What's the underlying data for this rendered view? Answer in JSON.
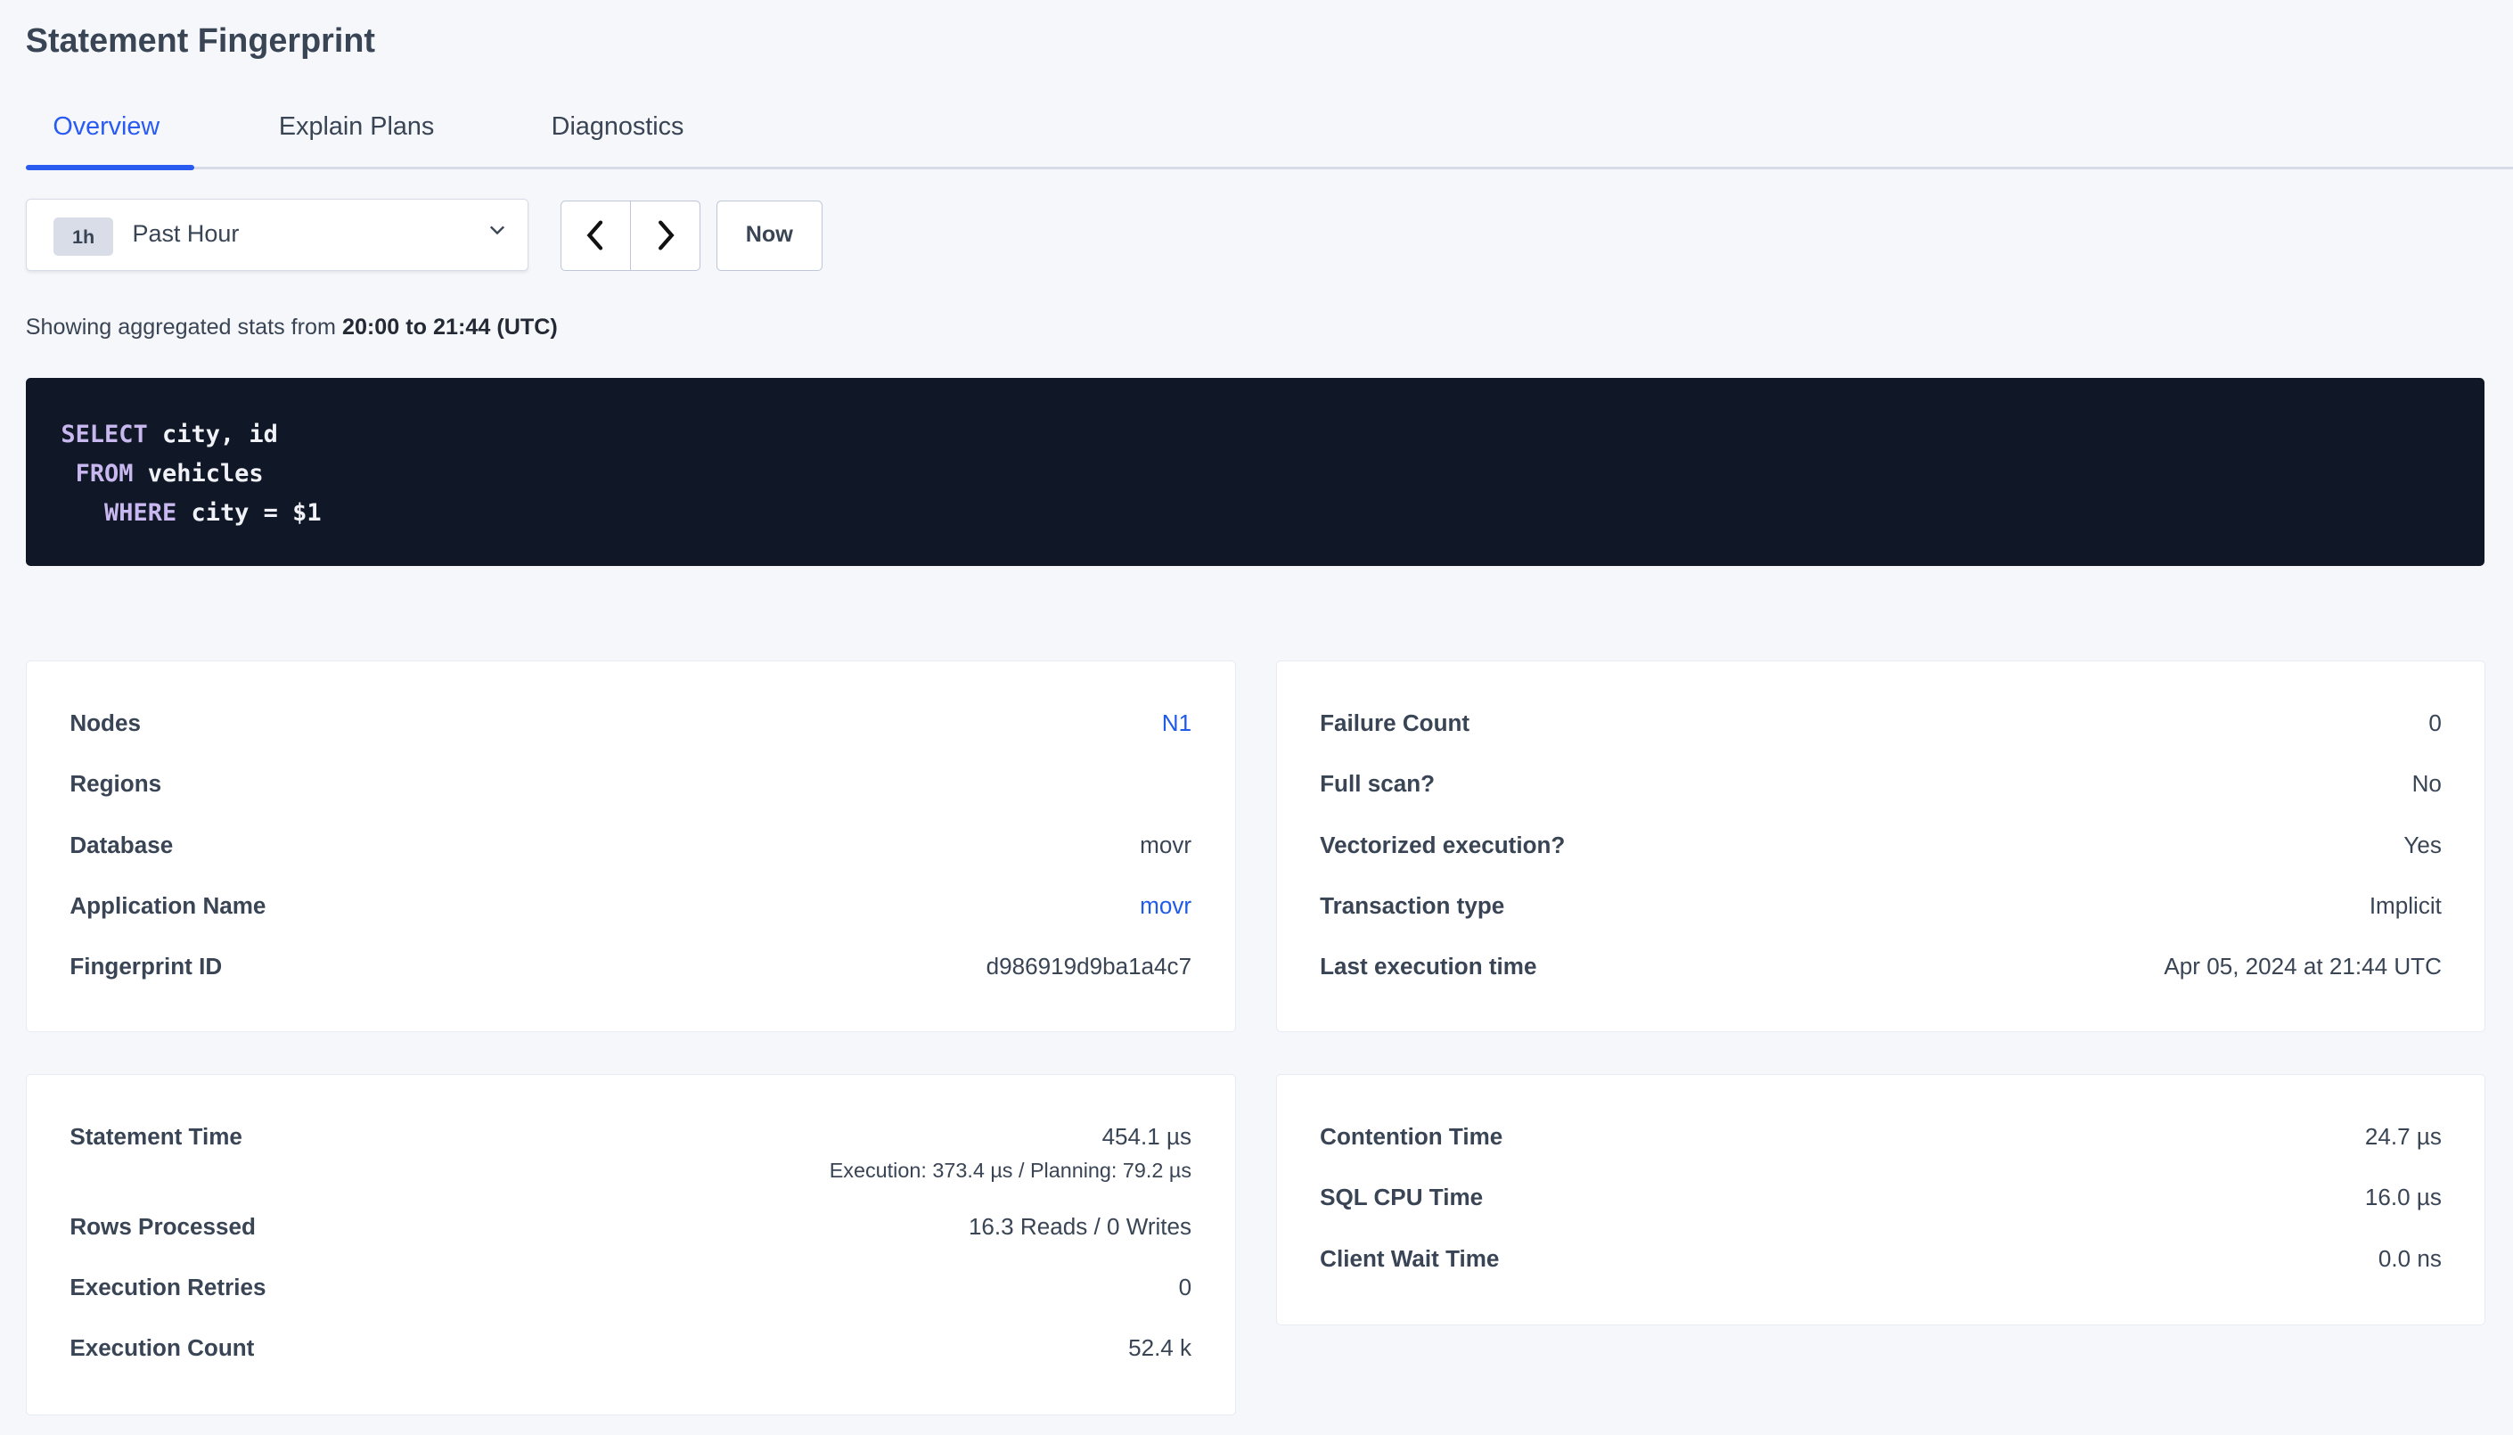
{
  "page": {
    "title": "Statement Fingerprint"
  },
  "tabs": [
    {
      "label": "Overview",
      "active": true
    },
    {
      "label": "Explain Plans"
    },
    {
      "label": "Diagnostics"
    }
  ],
  "time_selector": {
    "badge": "1h",
    "label": "Past Hour",
    "now_label": "Now"
  },
  "stats_line": {
    "prefix": "Showing aggregated stats from ",
    "range": "20:00 to 21:44 (UTC)"
  },
  "sql": [
    {
      "kw": "SELECT",
      "rest": " city, id",
      "indent": ""
    },
    {
      "kw": "FROM",
      "rest": " vehicles",
      "indent": " "
    },
    {
      "kw": "WHERE",
      "rest": " city = $1",
      "indent": "   "
    }
  ],
  "colors": {
    "accent": "#2a5bf0",
    "code_bg": "#101828",
    "keyword": "#c8b8ef",
    "background": "#f5f7fa"
  },
  "card_info_left": [
    {
      "label": "Nodes",
      "value": "N1",
      "link": true
    },
    {
      "label": "Regions",
      "value": ""
    },
    {
      "label": "Database",
      "value": "movr"
    },
    {
      "label": "Application Name",
      "value": "movr",
      "link": true
    },
    {
      "label": "Fingerprint ID",
      "value": "d986919d9ba1a4c7"
    }
  ],
  "card_info_right": [
    {
      "label": "Failure Count",
      "value": "0"
    },
    {
      "label": "Full scan?",
      "value": "No"
    },
    {
      "label": "Vectorized execution?",
      "value": "Yes"
    },
    {
      "label": "Transaction type",
      "value": "Implicit"
    },
    {
      "label": "Last execution time",
      "value": "Apr 05, 2024 at 21:44 UTC"
    }
  ],
  "card_stats_left": [
    {
      "label": "Statement Time",
      "value": "454.1 µs",
      "sub": "Execution: 373.4 µs / Planning: 79.2 µs"
    },
    {
      "label": "Rows Processed",
      "value": "16.3 Reads / 0 Writes"
    },
    {
      "label": "Execution Retries",
      "value": "0"
    },
    {
      "label": "Execution Count",
      "value": "52.4 k"
    }
  ],
  "card_stats_right": [
    {
      "label": "Contention Time",
      "value": "24.7 µs"
    },
    {
      "label": "SQL CPU Time",
      "value": "16.0 µs"
    },
    {
      "label": "Client Wait Time",
      "value": "0.0 ns"
    }
  ]
}
